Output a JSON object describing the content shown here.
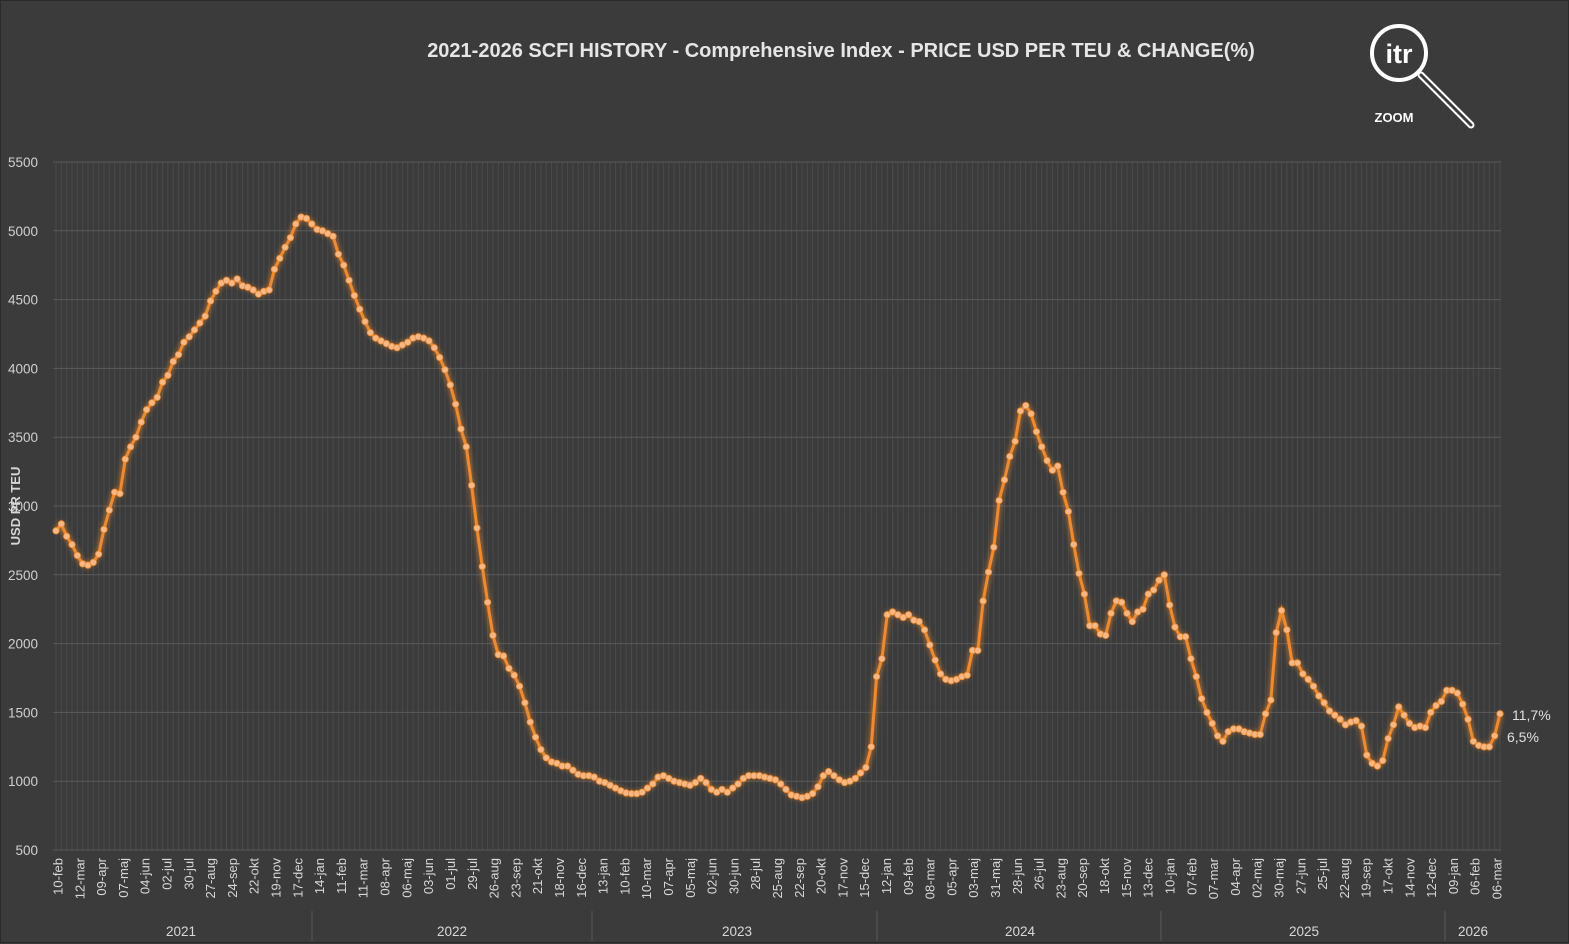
{
  "chart_data": {
    "type": "line",
    "title": "2021-2026 SCFI HISTORY - Comprehensive Index - PRICE USD PER TEU & CHANGE(%)",
    "ylabel": "USD PR TEU",
    "ylim": [
      500,
      5500
    ],
    "yticks": [
      "5500",
      "5000",
      "4500",
      "4000",
      "3500",
      "3000",
      "2500",
      "2000",
      "1500",
      "1000",
      "500"
    ],
    "grid": true,
    "line_color": "#f08a2e",
    "marker_color": "#f6b886",
    "x_tick_labels": [
      "10-feb",
      "12-mar",
      "09-apr",
      "07-maj",
      "04-jun",
      "02-jul",
      "30-jul",
      "27-aug",
      "24-sep",
      "22-okt",
      "19-nov",
      "17-dec",
      "14-jan",
      "11-feb",
      "11-mar",
      "08-apr",
      "06-maj",
      "03-jun",
      "01-jul",
      "29-jul",
      "26-aug",
      "23-sep",
      "21-okt",
      "18-nov",
      "16-dec",
      "13-jan",
      "10-feb",
      "10-mar",
      "07-apr",
      "05-maj",
      "02-jun",
      "30-jun",
      "28-jul",
      "25-aug",
      "22-sep",
      "20-okt",
      "17-nov",
      "15-dec",
      "12-jan",
      "09-feb",
      "08-mar",
      "05-apr",
      "03-maj",
      "31-maj",
      "28-jun",
      "26-jul",
      "23-aug",
      "20-sep",
      "18-okt",
      "15-nov",
      "13-dec",
      "10-jan",
      "07-feb",
      "07-mar",
      "04-apr",
      "02-maj",
      "30-maj",
      "27-jun",
      "25-jul",
      "22-aug",
      "19-sep",
      "17-okt",
      "14-nov",
      "12-dec",
      "09-jan",
      "06-feb",
      "06-mar"
    ],
    "years": [
      "2021",
      "2022",
      "2023",
      "2024",
      "2025",
      "2026"
    ],
    "series": [
      {
        "values": [
          2820,
          2870,
          2780,
          2720,
          2640,
          2580,
          2570,
          2590,
          2650,
          2830,
          2970,
          3100,
          3090,
          3340,
          3430,
          3500,
          3610,
          3700,
          3750,
          3790,
          3900,
          3950,
          4050,
          4100,
          4190,
          4230,
          4280,
          4330,
          4380,
          4490,
          4560,
          4620,
          4640,
          4620,
          4650,
          4600,
          4590,
          4570,
          4540,
          4560,
          4570,
          4720,
          4800,
          4880,
          4950,
          5050,
          5100,
          5090,
          5050,
          5010,
          5000,
          4980,
          4960,
          4830,
          4750,
          4640,
          4530,
          4430,
          4340,
          4260,
          4220,
          4200,
          4180,
          4160,
          4150,
          4170,
          4190,
          4220,
          4230,
          4220,
          4200,
          4150,
          4080,
          3990,
          3880,
          3740,
          3560,
          3430,
          3150,
          2840,
          2560,
          2300,
          2060,
          1920,
          1910,
          1820,
          1770,
          1690,
          1570,
          1430,
          1320,
          1230,
          1170,
          1140,
          1130,
          1110,
          1110,
          1080,
          1050,
          1040,
          1040,
          1030,
          1000,
          990,
          970,
          950,
          930,
          915,
          910,
          910,
          920,
          950,
          980,
          1030,
          1040,
          1020,
          1000,
          990,
          980,
          970,
          990,
          1020,
          990,
          940,
          920,
          940,
          920,
          950,
          980,
          1020,
          1040,
          1040,
          1040,
          1030,
          1020,
          1010,
          980,
          940,
          900,
          890,
          880,
          890,
          910,
          960,
          1040,
          1070,
          1040,
          1010,
          990,
          1000,
          1020,
          1060,
          1100,
          1250,
          1760,
          1890,
          2210,
          2230,
          2210,
          2190,
          2210,
          2170,
          2160,
          2100,
          1990,
          1880,
          1780,
          1740,
          1730,
          1740,
          1760,
          1770,
          1950,
          1950,
          2310,
          2520,
          2700,
          3040,
          3190,
          3360,
          3470,
          3690,
          3730,
          3670,
          3540,
          3430,
          3330,
          3260,
          3290,
          3100,
          2960,
          2720,
          2510,
          2360,
          2130,
          2130,
          2070,
          2060,
          2220,
          2310,
          2300,
          2220,
          2160,
          2230,
          2250,
          2360,
          2390,
          2460,
          2500,
          2280,
          2120,
          2050,
          2050,
          1890,
          1760,
          1600,
          1500,
          1420,
          1330,
          1290,
          1360,
          1380,
          1380,
          1360,
          1350,
          1340,
          1340,
          1490,
          1590,
          2080,
          2240,
          2100,
          1860,
          1860,
          1780,
          1740,
          1690,
          1620,
          1570,
          1510,
          1480,
          1450,
          1410,
          1430,
          1440,
          1400,
          1190,
          1130,
          1110,
          1150,
          1310,
          1410,
          1540,
          1480,
          1420,
          1390,
          1400,
          1390,
          1500,
          1550,
          1580,
          1660,
          1660,
          1640,
          1560,
          1450,
          1290,
          1260,
          1250,
          1250,
          1330,
          1490
        ],
        "labels_end": [
          "11,7%",
          "6,5%"
        ]
      }
    ]
  },
  "logo": {
    "brand": "itr",
    "caption": "ZOOM"
  }
}
